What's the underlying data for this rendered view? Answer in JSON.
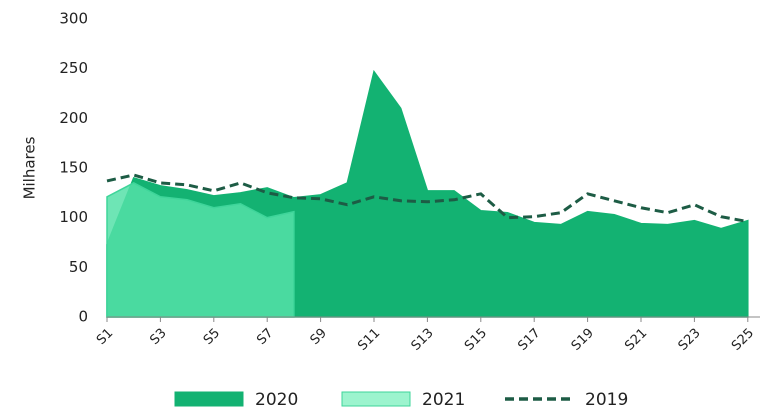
{
  "chart_data": {
    "type": "area",
    "y_label": "Milhares",
    "categories": [
      "S1",
      null,
      "S3",
      null,
      "S5",
      null,
      "S7",
      null,
      "S9",
      null,
      "S11",
      null,
      "S13",
      null,
      "S15",
      null,
      "S17",
      null,
      "S19",
      null,
      "S21",
      null,
      "S23",
      null,
      "S25"
    ],
    "ylim": [
      0,
      300
    ],
    "yticks": [
      0,
      50,
      100,
      150,
      200,
      250,
      300
    ],
    "series": [
      {
        "name": "2020",
        "color": "#13b272",
        "style": "area",
        "values": [
          73,
          140,
          132,
          128,
          122,
          125,
          130,
          120,
          123,
          135,
          247,
          210,
          127,
          127,
          107,
          105,
          95,
          93,
          106,
          103,
          94,
          93,
          97,
          89,
          97
        ]
      },
      {
        "name": "2021",
        "color": "#55e0a8",
        "style": "area",
        "values": [
          121,
          135,
          121,
          118,
          110,
          114,
          100,
          106,
          null,
          null,
          null,
          null,
          null,
          null,
          null,
          null,
          null,
          null,
          null,
          null,
          null,
          null,
          null,
          null,
          null
        ]
      },
      {
        "name": "2019",
        "color": "#1d5c45",
        "style": "dashed-line",
        "values": [
          137,
          143,
          135,
          133,
          127,
          135,
          125,
          120,
          119,
          113,
          121,
          117,
          116,
          118,
          124,
          100,
          101,
          105,
          124,
          117,
          110,
          105,
          113,
          101,
          96
        ]
      }
    ]
  }
}
